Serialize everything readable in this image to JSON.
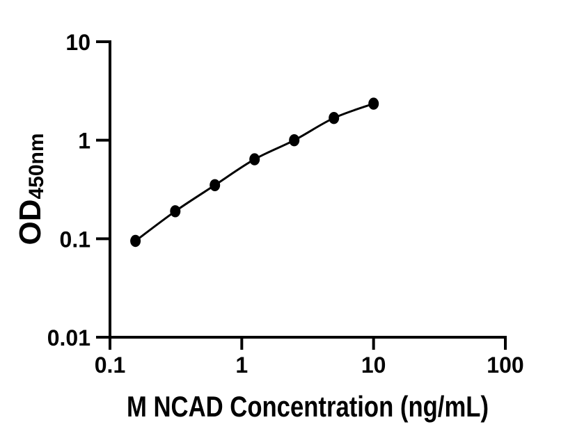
{
  "chart": {
    "ylabel_main": "OD",
    "ylabel_sub": "450nm",
    "xlabel": "M NCAD Concentration (ng/mL)"
  },
  "colors": {
    "background": "#ffffff",
    "axis": "#000000",
    "curve": "#000000",
    "marker": "#000000",
    "text": "#000000"
  },
  "chart_data": {
    "type": "line",
    "title": "",
    "xlabel": "M NCAD Concentration (ng/mL)",
    "ylabel": "OD450nm",
    "x_scale": "log10",
    "y_scale": "log10",
    "xlim": [
      0.1,
      100
    ],
    "ylim": [
      0.01,
      10
    ],
    "grid": false,
    "legend": false,
    "x_ticks": [
      {
        "value": 0.1,
        "label": "0.1"
      },
      {
        "value": 1,
        "label": "1"
      },
      {
        "value": 10,
        "label": "10"
      },
      {
        "value": 100,
        "label": "100"
      }
    ],
    "y_ticks": [
      {
        "value": 10,
        "label": "10"
      },
      {
        "value": 1,
        "label": "1"
      },
      {
        "value": 0.1,
        "label": "0.1"
      },
      {
        "value": 0.01,
        "label": "0.01"
      }
    ],
    "series": [
      {
        "marker": "filled-ellipse",
        "line": "smooth",
        "color": "#000000",
        "x": [
          0.156,
          0.313,
          0.625,
          1.25,
          2.5,
          5,
          10
        ],
        "y": [
          0.095,
          0.19,
          0.35,
          0.64,
          1.0,
          1.68,
          2.35
        ]
      }
    ]
  }
}
